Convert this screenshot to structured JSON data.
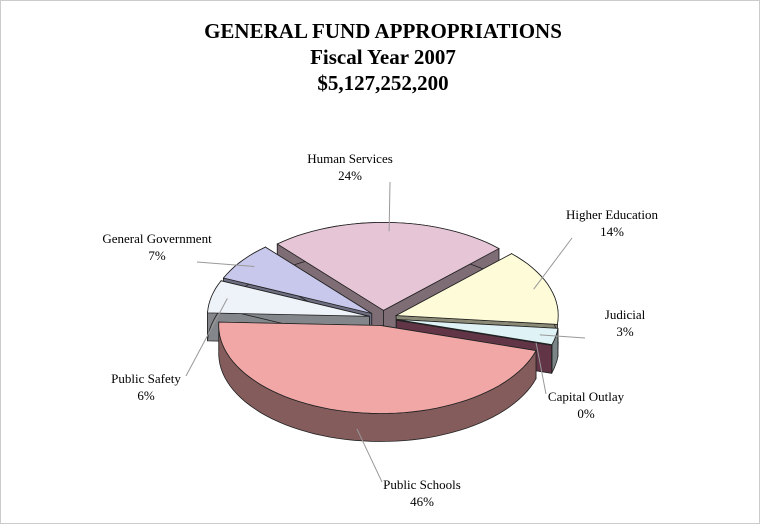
{
  "chart_data": {
    "type": "pie3d",
    "title": [
      "GENERAL FUND APPROPRIATIONS",
      "Fiscal Year 2007",
      "$5,127,252,200"
    ],
    "categories": [
      "Human Services",
      "Higher Education",
      "Judicial",
      "Capital Outlay",
      "Public Schools",
      "Public Safety",
      "General Government"
    ],
    "values": [
      24,
      14,
      3,
      0,
      46,
      6,
      7
    ],
    "value_labels": [
      "24%",
      "14%",
      "3%",
      "0%",
      "46%",
      "6%",
      "7%"
    ],
    "colors": [
      "#e6c6d6",
      "#fdfbd8",
      "#dff2f6",
      "#b06080",
      "#f2a7a7",
      "#eef3fa",
      "#c8c8ec"
    ],
    "explode": true
  }
}
